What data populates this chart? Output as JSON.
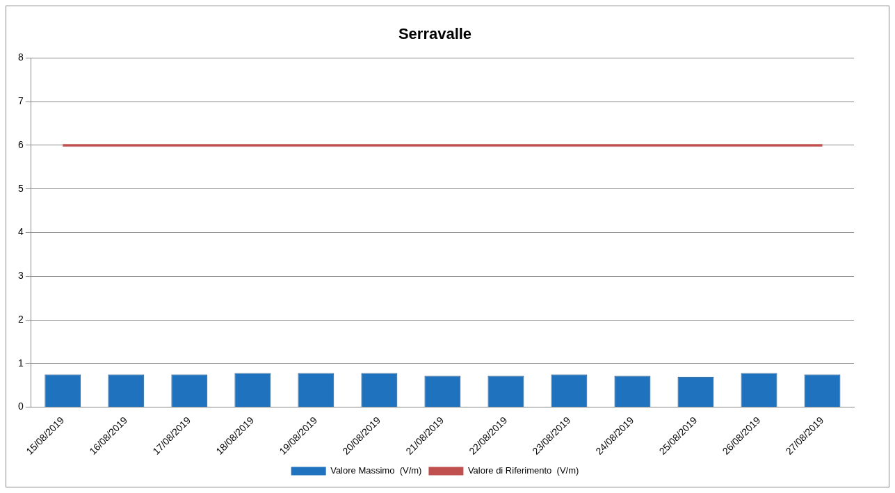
{
  "chart_data": {
    "type": "bar",
    "title": "Serravalle",
    "categories": [
      "15/08/2019",
      "16/08/2019",
      "17/08/2019",
      "18/08/2019",
      "19/08/2019",
      "20/08/2019",
      "21/08/2019",
      "22/08/2019",
      "23/08/2019",
      "24/08/2019",
      "25/08/2019",
      "26/08/2019",
      "27/08/2019"
    ],
    "series": [
      {
        "name": "Valore Massimo  (V/m)",
        "color": "#1f72bd",
        "values": [
          0.75,
          0.75,
          0.75,
          0.78,
          0.78,
          0.78,
          0.72,
          0.72,
          0.75,
          0.72,
          0.7,
          0.78,
          0.75
        ]
      },
      {
        "name": "Valore di Riferimento  (V/m)",
        "type": "line",
        "color": "#c0504d",
        "values": [
          6,
          6,
          6,
          6,
          6,
          6,
          6,
          6,
          6,
          6,
          6,
          6,
          6
        ]
      }
    ],
    "ylim": [
      0,
      8
    ],
    "yticks": [
      0,
      1,
      2,
      3,
      4,
      5,
      6,
      7,
      8
    ],
    "grid": "y",
    "legend": "bottom",
    "marker": "none"
  }
}
